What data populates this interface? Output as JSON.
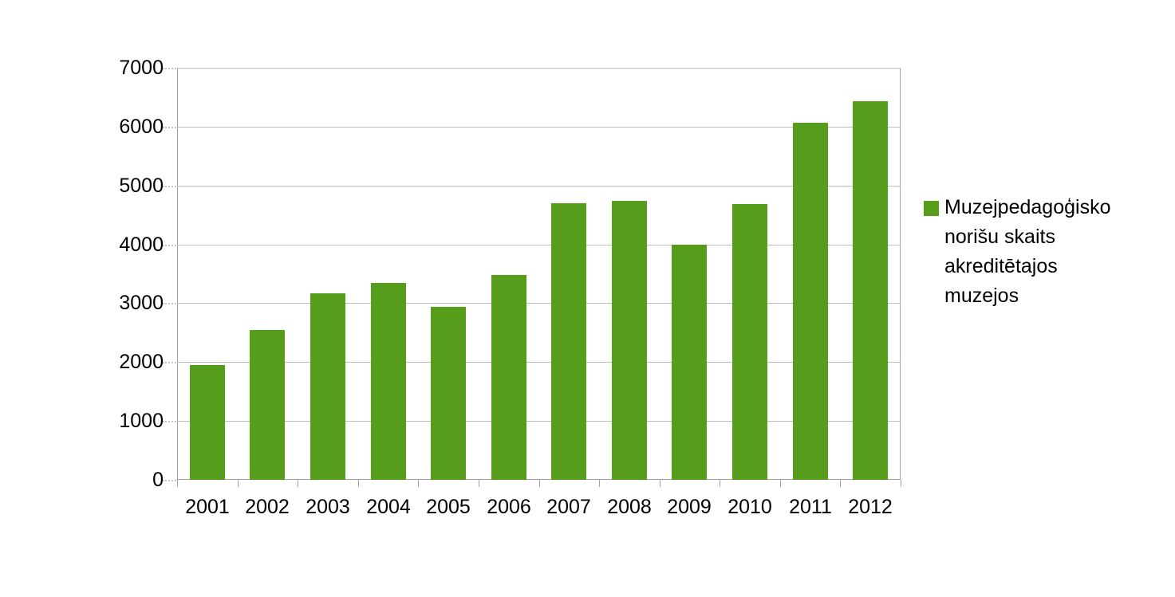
{
  "chart_data": {
    "type": "bar",
    "title": "",
    "categories": [
      "2001",
      "2002",
      "2003",
      "2004",
      "2005",
      "2006",
      "2007",
      "2008",
      "2009",
      "2010",
      "2011",
      "2012"
    ],
    "series": [
      {
        "name": "Muzejpedagoģisko norišu skaits akreditētajos muzejos",
        "values": [
          1950,
          2550,
          3170,
          3340,
          2940,
          3480,
          4700,
          4740,
          4000,
          4690,
          6070,
          6430
        ],
        "color": "#579D1C"
      }
    ],
    "xlabel": "",
    "ylabel": "",
    "ylim": [
      0,
      7000
    ],
    "yticks": [
      0,
      1000,
      2000,
      3000,
      4000,
      5000,
      6000,
      7000
    ],
    "grid": "horizontal",
    "legend_position": "right",
    "legend_lines": [
      "Muzejpedagoģisko",
      "norišu skaits",
      "akreditētajos",
      "muzejos"
    ]
  },
  "colors": {
    "bar": "#579D1C",
    "gridline": "#bcbcbc",
    "axis": "#a0a0a0",
    "text": "#000000",
    "background": "#ffffff"
  }
}
